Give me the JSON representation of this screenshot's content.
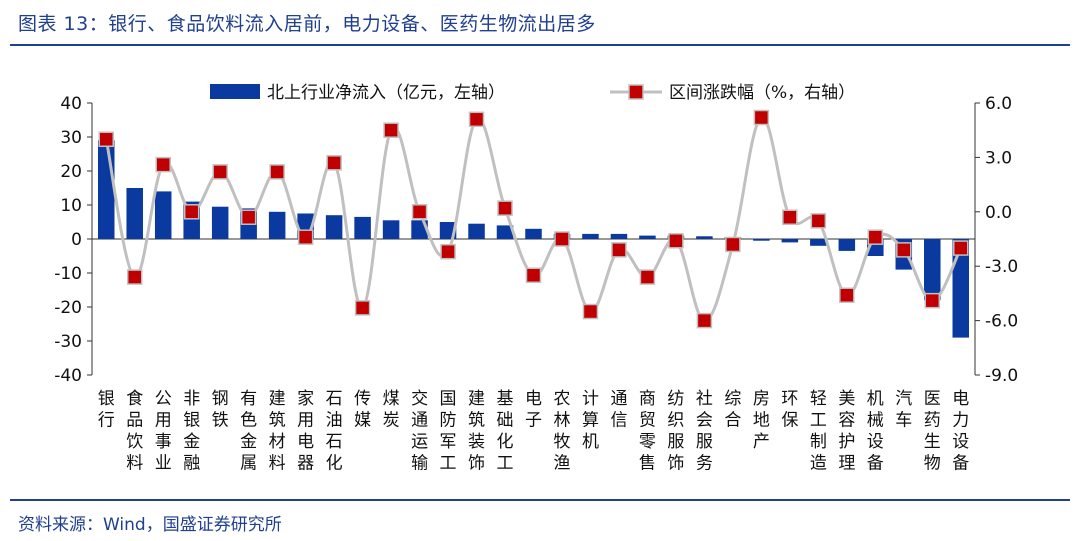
{
  "header": {
    "title": "图表 13：银行、食品饮料流入居前，电力设备、医药生物流出居多"
  },
  "footer": {
    "source": "资料来源：Wind，国盛证券研究所"
  },
  "chart_data": {
    "type": "bar+line",
    "categories": [
      "银行",
      "食品饮料",
      "公用事业",
      "非银金融",
      "钢铁",
      "有色金属",
      "建筑材料",
      "家用电器",
      "石油石化",
      "传媒",
      "煤炭",
      "交通运输",
      "国防军工",
      "建筑装饰",
      "基础化工",
      "电子",
      "农林牧渔",
      "计算机",
      "通信",
      "商贸零售",
      "纺织服饰",
      "社会服务",
      "综合",
      "房地产",
      "环保",
      "轻工制造",
      "美容护理",
      "机械设备",
      "汽车",
      "医药生物",
      "电力设备"
    ],
    "series": [
      {
        "name": "北上行业净流入（亿元，左轴）",
        "axis": "left",
        "kind": "bar",
        "color": "#0a3aa0",
        "values": [
          29,
          15,
          14,
          11,
          9.5,
          9,
          8,
          7.5,
          7,
          6.5,
          5.5,
          5.5,
          5,
          4.5,
          4,
          3,
          1.5,
          1.5,
          1.5,
          1,
          1,
          0.8,
          0.5,
          -0.5,
          -1,
          -2,
          -3.5,
          -5,
          -9,
          -18,
          -29
        ]
      },
      {
        "name": "区间涨跌幅（%，右轴）",
        "axis": "right",
        "kind": "line",
        "color": "#c00000",
        "line_color": "#c0c0c0",
        "values": [
          4.0,
          -3.6,
          2.6,
          0.0,
          2.2,
          -0.3,
          2.2,
          -1.4,
          2.7,
          -5.3,
          4.5,
          0.0,
          -2.2,
          5.1,
          0.2,
          -3.5,
          -1.5,
          -5.5,
          -2.1,
          -3.6,
          -1.6,
          -6.0,
          -1.8,
          5.2,
          -0.3,
          -0.5,
          -4.6,
          -1.4,
          -2.1,
          -4.9,
          -2.0
        ]
      }
    ],
    "y_left": {
      "min": -40,
      "max": 40,
      "ticks": [
        "40",
        "30",
        "20",
        "10",
        "0",
        "-10",
        "-20",
        "-30",
        "-40"
      ]
    },
    "y_right": {
      "min": -9,
      "max": 6,
      "ticks": [
        "6.0",
        "3.0",
        "0.0",
        "-3.0",
        "-6.0",
        "-9.0"
      ]
    },
    "legend": {
      "placement": "top",
      "bar_label": "北上行业净流入（亿元，左轴）",
      "line_label": "区间涨跌幅（%，右轴）"
    },
    "grid": false
  }
}
